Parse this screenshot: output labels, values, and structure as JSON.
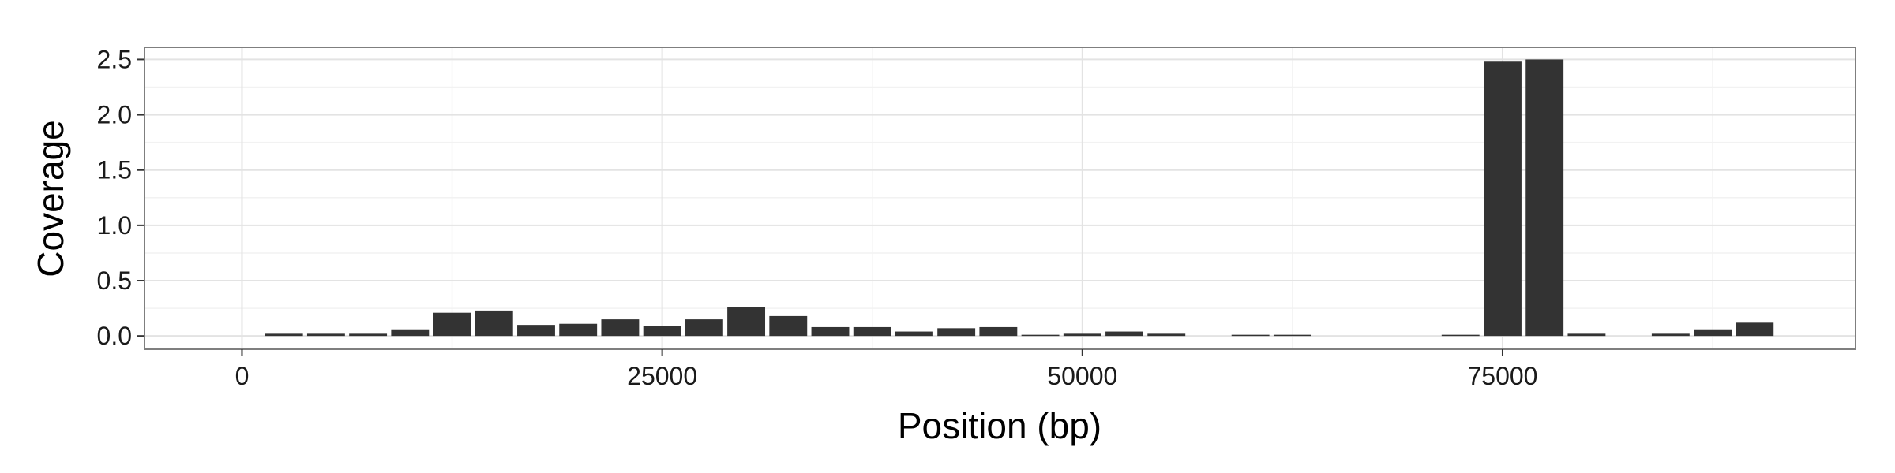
{
  "chart_data": {
    "type": "bar",
    "xlabel": "Position (bp)",
    "ylabel": "Coverage",
    "xlim": [
      -5800,
      96000
    ],
    "ylim": [
      -0.12,
      2.61
    ],
    "x_ticks": [
      0,
      25000,
      50000,
      75000
    ],
    "x_tick_labels": [
      "0",
      "25000",
      "50000",
      "75000"
    ],
    "y_ticks": [
      0.0,
      0.5,
      1.0,
      1.5,
      2.0,
      2.5
    ],
    "y_tick_labels": [
      "0.0",
      "0.5",
      "1.0",
      "1.5",
      "2.0",
      "2.5"
    ],
    "grid": true,
    "bin_width": 2500,
    "bar_color": "#333333",
    "x": [
      2500,
      5000,
      7500,
      10000,
      12500,
      15000,
      17500,
      20000,
      22500,
      25000,
      27500,
      30000,
      32500,
      35000,
      37500,
      40000,
      42500,
      45000,
      47500,
      50000,
      52500,
      55000,
      60000,
      62500,
      72500,
      75000,
      77500,
      80000,
      85000,
      87500,
      90000
    ],
    "values": [
      0.02,
      0.02,
      0.02,
      0.06,
      0.21,
      0.23,
      0.1,
      0.11,
      0.15,
      0.09,
      0.15,
      0.26,
      0.18,
      0.08,
      0.08,
      0.04,
      0.07,
      0.08,
      0.01,
      0.02,
      0.04,
      0.02,
      0.01,
      0.01,
      0.005,
      2.48,
      2.5,
      0.02,
      0.02,
      0.06,
      0.12
    ]
  }
}
